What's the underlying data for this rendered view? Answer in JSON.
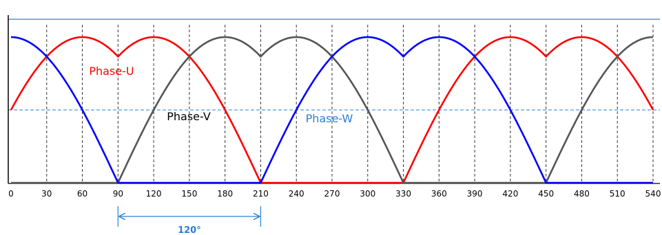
{
  "chart_data": {
    "type": "line",
    "title": "",
    "xlabel": "",
    "ylabel": "",
    "x_ticks": [
      0,
      30,
      60,
      90,
      120,
      150,
      180,
      210,
      240,
      270,
      300,
      330,
      360,
      390,
      420,
      450,
      480,
      510,
      540
    ],
    "xlim": [
      0,
      540
    ],
    "ylim": [
      0,
      1.0
    ],
    "grid": "vertical dashed lines at every tick",
    "max_level": 1.0,
    "mid_level": 0.5,
    "series": [
      {
        "name": "Phase-U",
        "color": "#ff0000",
        "x": [
          0,
          30,
          60,
          90,
          120,
          150,
          180,
          210,
          240,
          270,
          300,
          330,
          360,
          390,
          420,
          450,
          480,
          510,
          540
        ],
        "y": [
          0.5,
          0.866,
          1.0,
          0.866,
          1.0,
          0.866,
          0.5,
          0.0,
          0.0,
          0.0,
          0.0,
          0.0,
          0.5,
          0.866,
          1.0,
          0.866,
          1.0,
          0.866,
          0.5
        ]
      },
      {
        "name": "Phase-V",
        "color": "#555555",
        "x": [
          0,
          30,
          60,
          90,
          120,
          150,
          180,
          210,
          240,
          270,
          300,
          330,
          360,
          390,
          420,
          450,
          480,
          510,
          540
        ],
        "y": [
          0.0,
          0.0,
          0.0,
          0.0,
          0.5,
          0.866,
          1.0,
          0.866,
          1.0,
          0.866,
          0.5,
          0.0,
          0.0,
          0.0,
          0.0,
          0.0,
          0.5,
          0.866,
          1.0
        ]
      },
      {
        "name": "Phase-W",
        "color": "#0000ff",
        "x": [
          0,
          30,
          60,
          90,
          120,
          150,
          180,
          210,
          240,
          270,
          300,
          330,
          360,
          390,
          420,
          450,
          480,
          510,
          540
        ],
        "y": [
          1.0,
          0.866,
          0.5,
          0.0,
          0.0,
          0.0,
          0.0,
          0.0,
          0.5,
          0.866,
          1.0,
          0.866,
          1.0,
          0.866,
          0.5,
          0.0,
          0.0,
          0.0,
          0.0
        ]
      }
    ],
    "series_label_colors": {
      "Phase-U": "#ff0000",
      "Phase-V": "#000000",
      "Phase-W": "#2a7fd4"
    },
    "annotation": {
      "text": "120°",
      "from_x": 90,
      "to_x": 210,
      "color": "#2a7fd4"
    }
  }
}
